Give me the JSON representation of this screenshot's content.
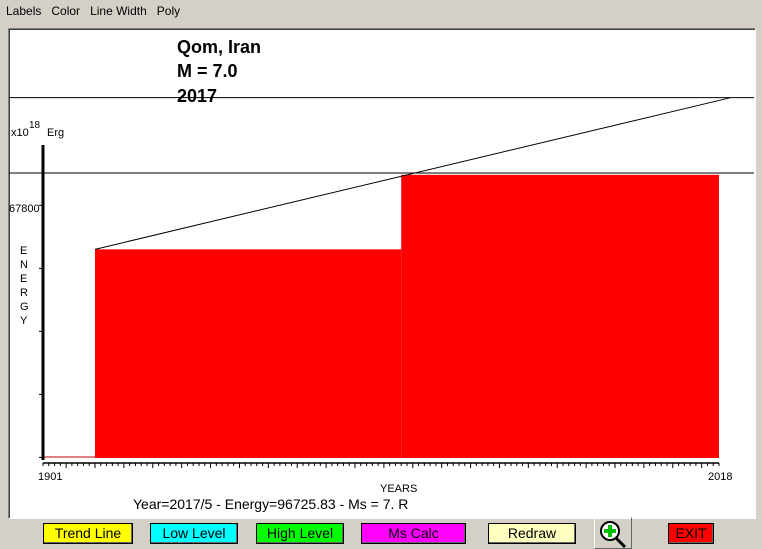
{
  "menu": [
    "Labels",
    "Color",
    "Line Width",
    "Poly"
  ],
  "title": {
    "line1": "Qom, Iran",
    "line2": "M = 7.0",
    "line3": "2017"
  },
  "status": "Year=2017/5 - Energy=96725.83 - Ms = 7. R",
  "buttons": [
    {
      "label": "Trend Line",
      "color": "#ffff00"
    },
    {
      "label": "Low Level",
      "color": "#00ffff"
    },
    {
      "label": "High Level",
      "color": "#00ff00"
    },
    {
      "label": "Ms Calc",
      "color": "#ff00ff"
    },
    {
      "label": "Redraw",
      "color": "#ffffc0"
    },
    {
      "label": "EXIT",
      "color": "#ff0000"
    }
  ],
  "zoom_icon": "zoom-in-icon",
  "chart_data": {
    "type": "area-step",
    "xlabel": "YEARS",
    "ylabel": "ENERGY",
    "yunit_prefix": "x10",
    "yunit_exp": "18",
    "yunit": "Erg",
    "xlim": [
      1901,
      2018
    ],
    "ylim": [
      0,
      84000
    ],
    "x_ticks": [
      "1901",
      "2018"
    ],
    "y_tick_label": "67800",
    "y_tick_label_value": 67800,
    "steps": [
      {
        "x0": 1910,
        "x1": 1963,
        "y": 56000
      },
      {
        "x0": 1963,
        "x1": 2018,
        "y": 76000
      }
    ],
    "baseline_segment": {
      "x0": 1901,
      "x1": 1910,
      "y": 0
    },
    "trend_line": {
      "x0": 1910,
      "y0": 56000,
      "x1": 2020,
      "y1": 96700
    },
    "horizontal_lines": [
      96700,
      76500
    ],
    "fill_color": "#ff0000"
  }
}
